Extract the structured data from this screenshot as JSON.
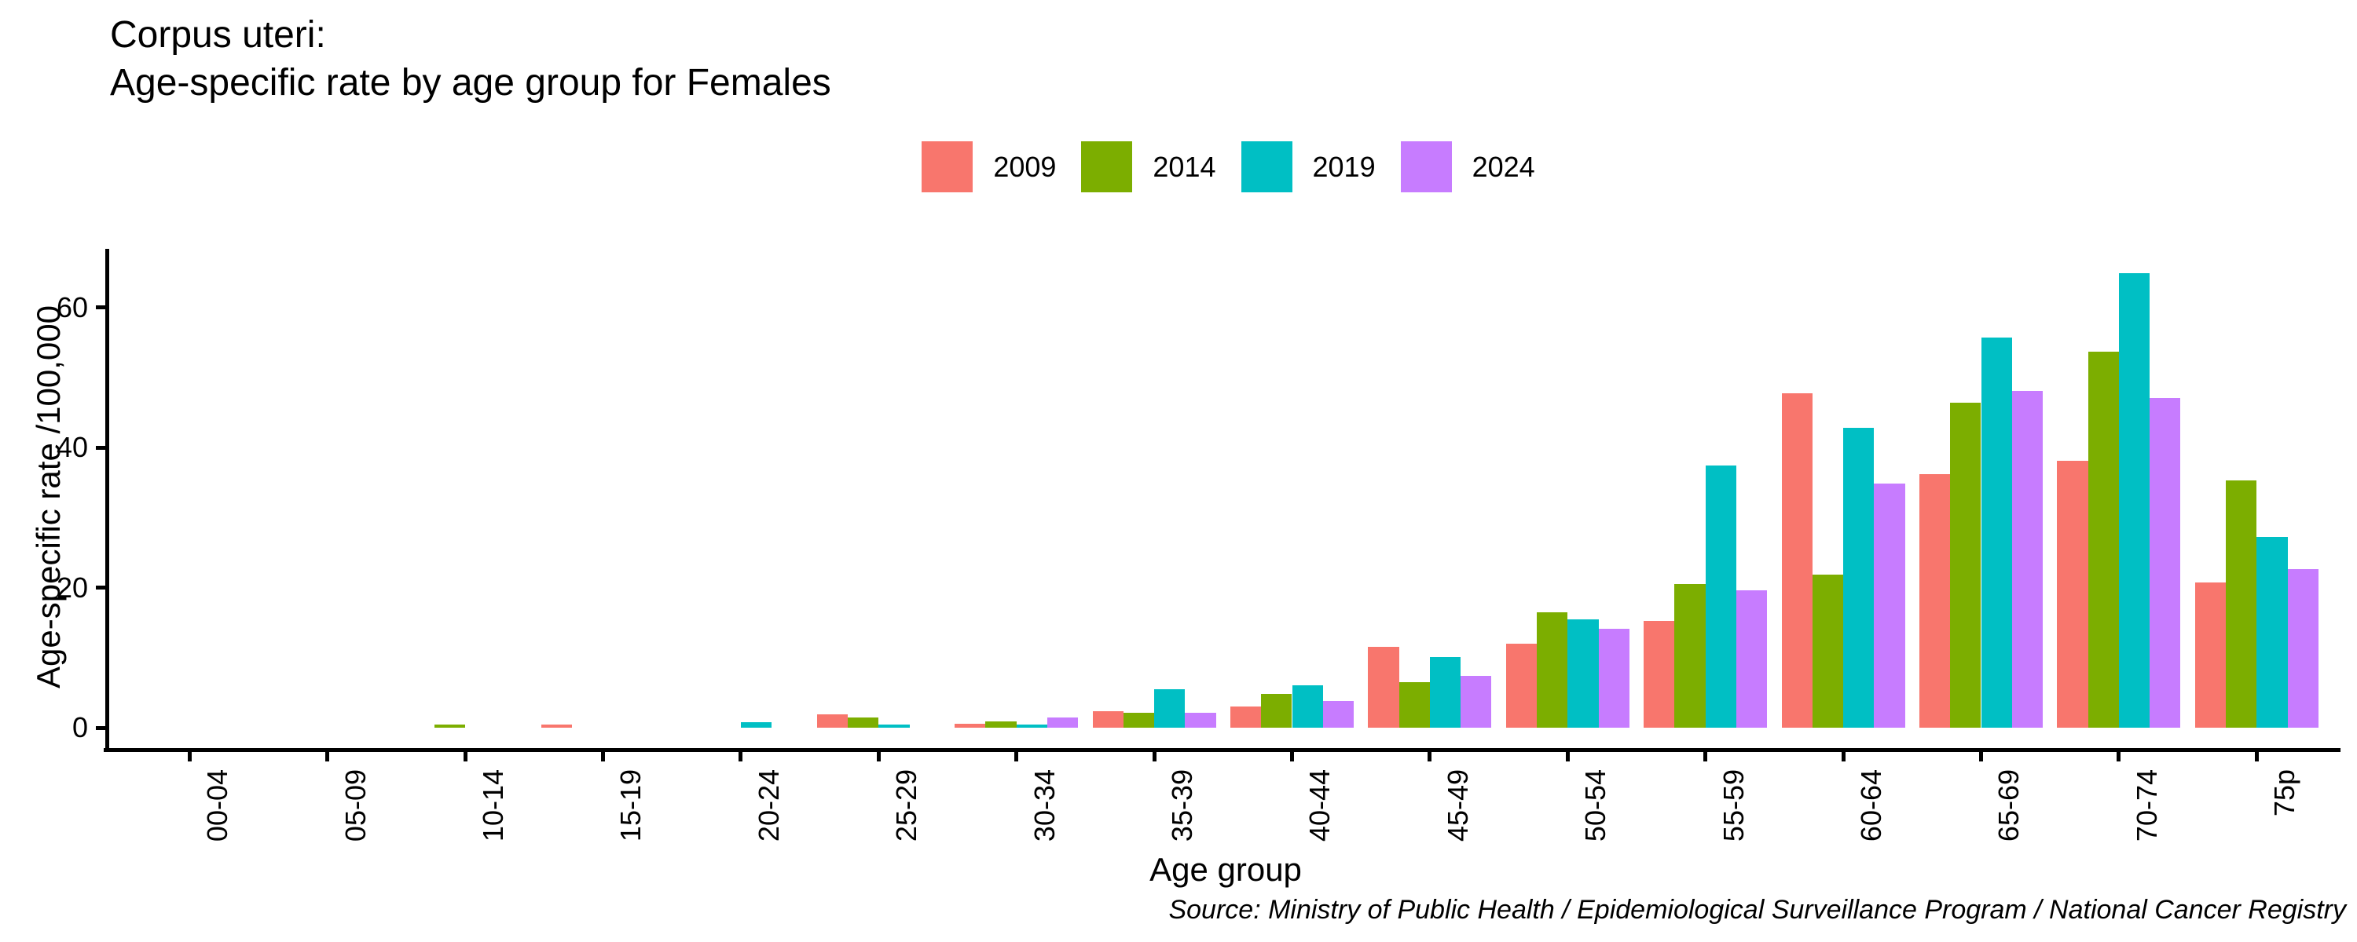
{
  "title": {
    "line1": "Corpus uteri:",
    "line2": "Age-specific rate by age group for Females"
  },
  "footer": {
    "source": "Source: Ministry of Public Health / Epidemiological Surveillance Program / National Cancer Registry"
  },
  "chart_data": {
    "type": "bar",
    "title": "Corpus uteri:\nAge-specific rate by age group for Females",
    "xlabel": "Age group",
    "ylabel": "Age-specific rate /100,000",
    "categories": [
      "00-04",
      "05-09",
      "10-14",
      "15-19",
      "20-24",
      "25-29",
      "30-34",
      "35-39",
      "40-44",
      "45-49",
      "50-54",
      "55-59",
      "60-64",
      "65-69",
      "70-74",
      "75p"
    ],
    "series": [
      {
        "name": "2009",
        "color": "#F8766D",
        "values": [
          0,
          0,
          0,
          0.5,
          0,
          1.9,
          0.6,
          2.3,
          3.0,
          11.5,
          12.0,
          15.2,
          47.7,
          36.2,
          38.1,
          20.7
        ]
      },
      {
        "name": "2014",
        "color": "#7CAE00",
        "values": [
          0,
          0,
          0.5,
          0,
          0,
          1.5,
          0.9,
          2.1,
          4.8,
          6.5,
          16.5,
          20.5,
          21.8,
          46.4,
          53.6,
          35.3
        ]
      },
      {
        "name": "2019",
        "color": "#00BFC4",
        "values": [
          0,
          0,
          0,
          0,
          0.8,
          0.5,
          0.4,
          5.5,
          6.0,
          10.1,
          15.4,
          37.4,
          42.8,
          55.7,
          64.8,
          27.2
        ]
      },
      {
        "name": "2024",
        "color": "#C77CFF",
        "values": [
          0,
          0,
          0,
          0,
          0,
          0,
          1.5,
          2.1,
          3.8,
          7.4,
          14.1,
          19.6,
          34.8,
          48.0,
          47.0,
          22.6
        ]
      }
    ],
    "yticks": [
      0,
      20,
      40,
      60
    ],
    "ylim": [
      0,
      69
    ],
    "grid": false,
    "legend_position": "top",
    "background": "#ffffff",
    "text_color": "#000000"
  }
}
